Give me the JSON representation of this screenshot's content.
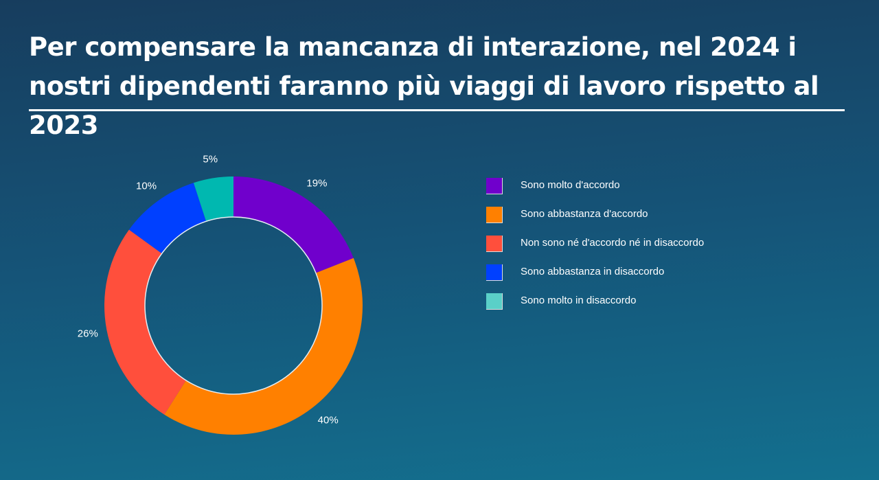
{
  "title": "Per compensare la mancanza di interazione, nel 2024 i nostri dipendenti faranno più viaggi di lavoro rispetto al 2023",
  "chart_data": {
    "type": "pie",
    "variant": "donut",
    "title": "Per compensare la mancanza di interazione, nel 2024 i nostri dipendenti faranno più viaggi di lavoro rispetto al 2023",
    "legend_position": "right",
    "categories": [
      "Sono molto d'accordo",
      "Sono abbastanza d'accordo",
      "Non sono né d'accordo né in disaccordo",
      "Sono abbastanza in disaccordo",
      "Sono molto in disaccordo"
    ],
    "values": [
      19,
      40,
      26,
      10,
      5
    ],
    "labels": [
      "19%",
      "40%",
      "26%",
      "10%",
      "5%"
    ],
    "colors": [
      "#7000cc",
      "#ff8000",
      "#ff4f3c",
      "#0040ff",
      "#00b8b0"
    ],
    "legend_colors": [
      "#7000cc",
      "#ff8000",
      "#ff4f3c",
      "#0040ff",
      "#5ad0c8"
    ]
  }
}
